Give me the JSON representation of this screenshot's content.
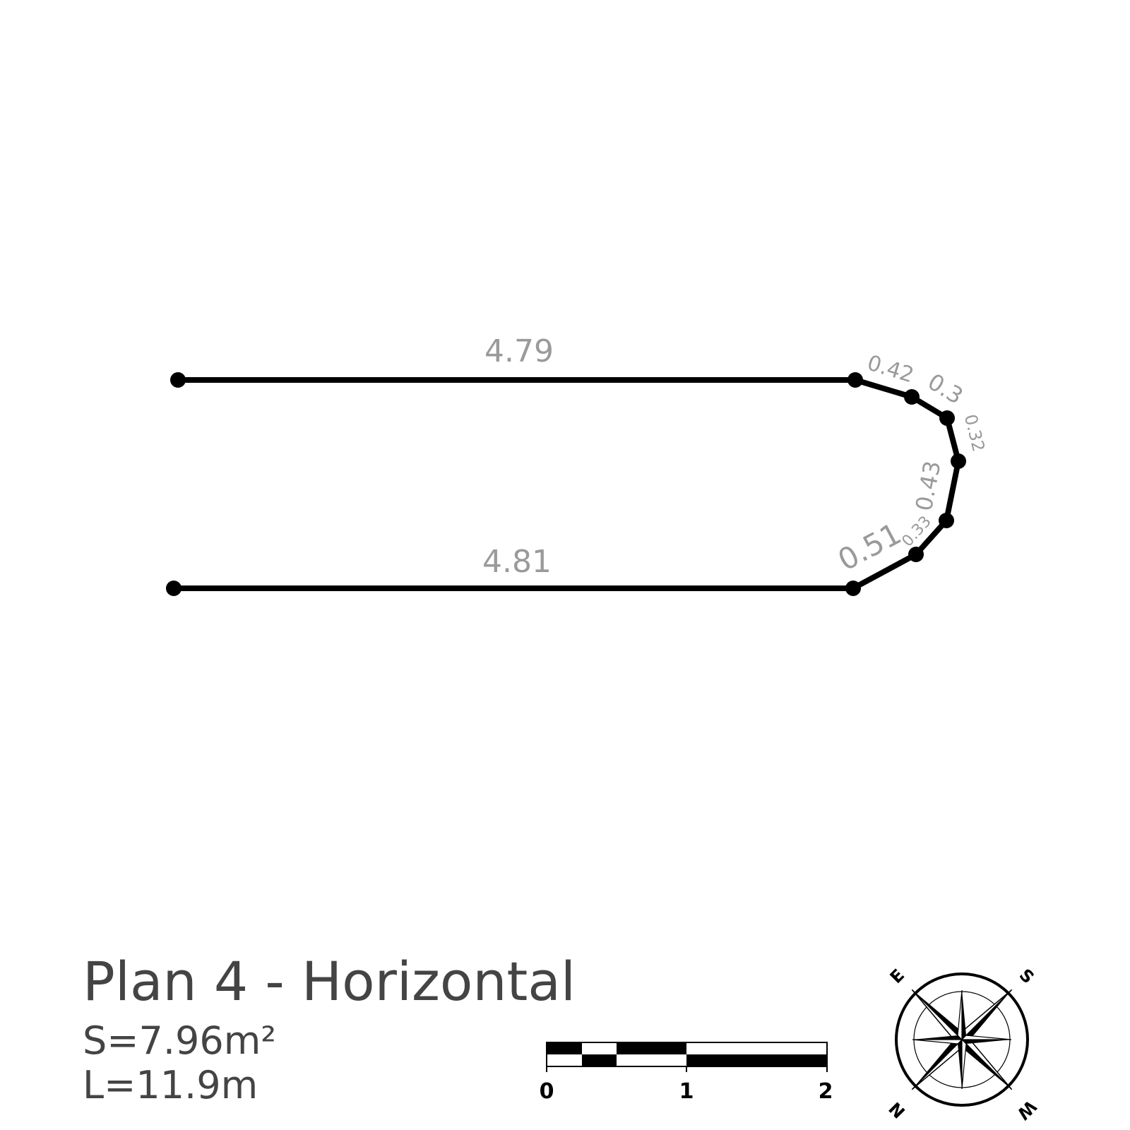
{
  "plan": {
    "title": "Plan 4 - Horizontal",
    "area": "S=7.96m²",
    "length": "L=11.9m"
  },
  "segments": [
    {
      "label": "4.79"
    },
    {
      "label": "0.42"
    },
    {
      "label": "0.3"
    },
    {
      "label": "0.32"
    },
    {
      "label": "0.43"
    },
    {
      "label": "0.33"
    },
    {
      "label": "0.51"
    },
    {
      "label": "4.81"
    }
  ],
  "scale_bar": {
    "labels": [
      "0",
      "1",
      "2"
    ]
  },
  "compass": {
    "letters": [
      "E",
      "S",
      "W",
      "N"
    ]
  },
  "colors": {
    "line": "#000000",
    "dimension_text": "#9a9a9a",
    "title_text": "#444444"
  }
}
